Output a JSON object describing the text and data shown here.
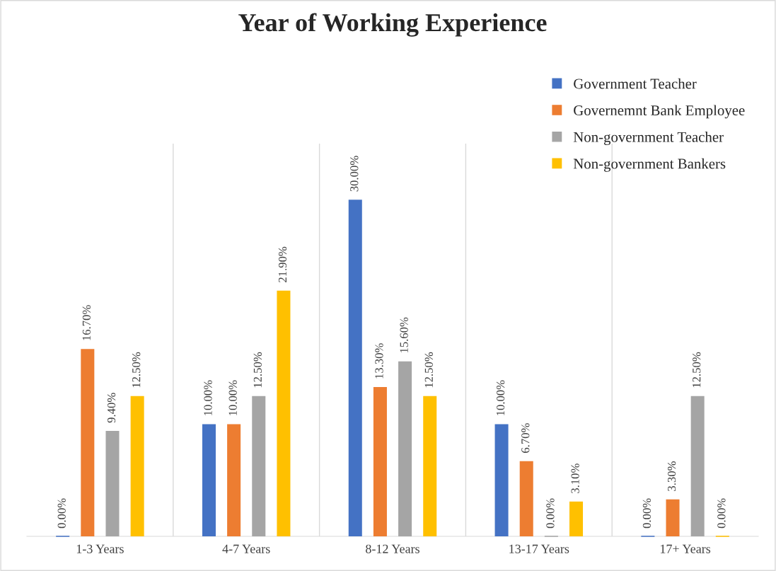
{
  "chart_data": {
    "type": "bar",
    "title": "Year of Working Experience",
    "categories": [
      "1-3 Years",
      "4-7 Years",
      "8-12 Years",
      "13-17 Years",
      "17+ Years"
    ],
    "series": [
      {
        "name": "Government Teacher",
        "color": "#4472c4",
        "values": [
          0,
          10,
          30,
          10,
          0
        ],
        "value_labels": [
          "0.00%",
          "10.00%",
          "30.00%",
          "10.00%",
          "0.00%"
        ]
      },
      {
        "name": "Governemnt Bank Employee",
        "color": "#ed7d31",
        "values": [
          16.7,
          10,
          13.3,
          6.7,
          3.3
        ],
        "value_labels": [
          "16.70%",
          "10.00%",
          "13.30%",
          "6.70%",
          "3.30%"
        ]
      },
      {
        "name": "Non-government Teacher",
        "color": "#a5a5a5",
        "values": [
          9.4,
          12.5,
          15.6,
          0,
          12.5
        ],
        "value_labels": [
          "9.40%",
          "12.50%",
          "15.60%",
          "0.00%",
          "12.50%"
        ]
      },
      {
        "name": "Non-government Bankers",
        "color": "#ffc000",
        "values": [
          12.5,
          21.9,
          12.5,
          3.1,
          0
        ],
        "value_labels": [
          "12.50%",
          "21.90%",
          "12.50%",
          "3.10%",
          "0.00%"
        ]
      }
    ],
    "grid": "x",
    "legend": "top right"
  }
}
